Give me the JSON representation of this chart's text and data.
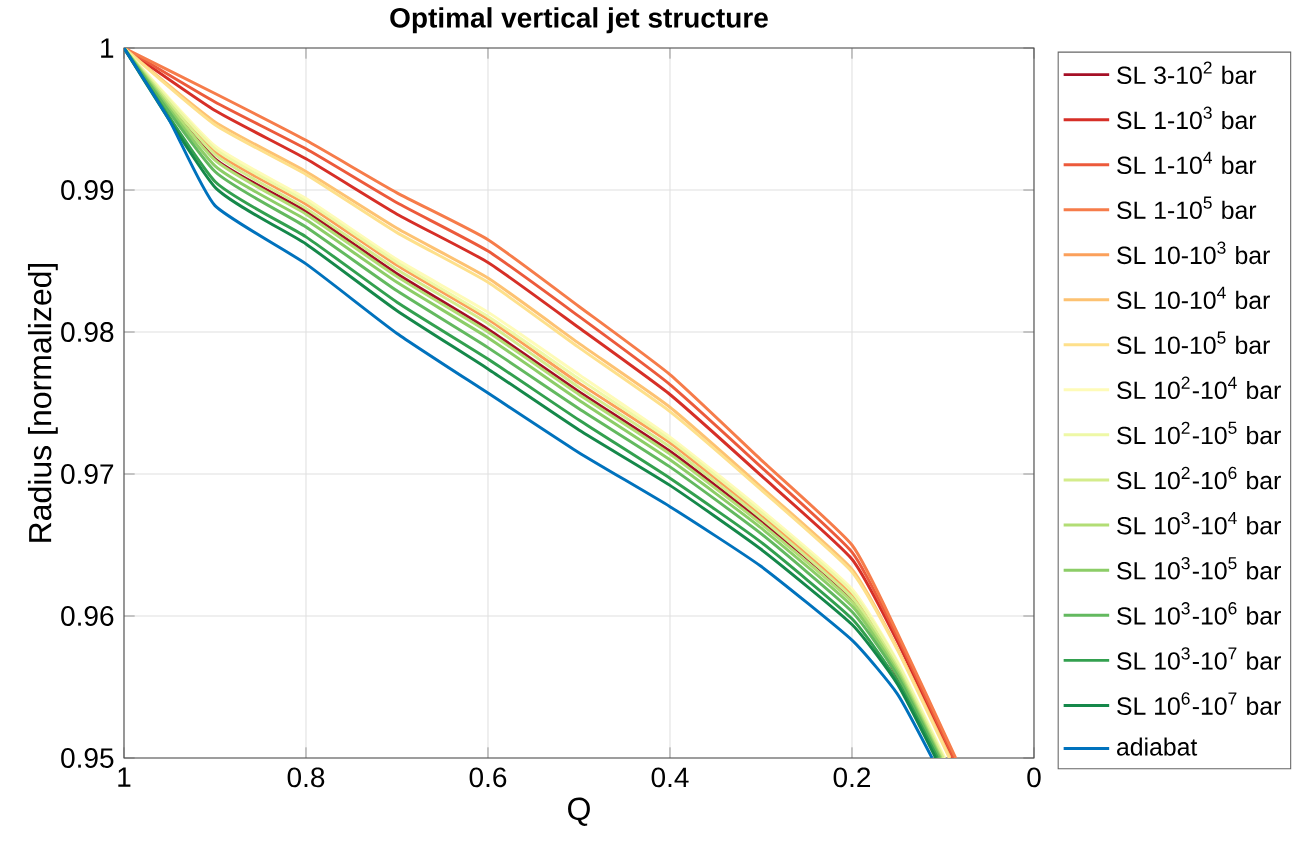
{
  "chart_data": {
    "type": "line",
    "title": "**Optimal vertical jet structure**",
    "xlabel": "Q",
    "ylabel": "Radius [normalized]",
    "xlim": [
      1,
      0
    ],
    "ylim": [
      0.95,
      1
    ],
    "xticks": [
      1,
      0.8,
      0.6,
      0.4,
      0.2,
      0
    ],
    "yticks": [
      0.95,
      0.96,
      0.97,
      0.98,
      0.99,
      1
    ],
    "grid": true,
    "legend": "right",
    "marker": "none",
    "line_style": "solid",
    "series": [
      {
        "name": "SL 3-10$^{2}$ bar",
        "color": "#a50f26",
        "x": [
          1,
          0.9,
          0.8,
          0.7,
          0.6,
          0.5,
          0.4,
          0.3,
          0.2,
          0.15,
          0.101
        ],
        "values": [
          1,
          0.9922,
          0.9885,
          0.9841,
          0.9802,
          0.9758,
          0.9716,
          0.9667,
          0.9611,
          null,
          0.95
        ]
      },
      {
        "name": "SL 1-10$^{3}$ bar",
        "color": "#d62f27",
        "x": [
          1,
          0.9,
          0.8,
          0.7,
          0.6,
          0.5,
          0.4,
          0.3,
          0.2,
          0.15,
          0.09
        ],
        "values": [
          1,
          0.9956,
          0.9922,
          0.9883,
          0.9849,
          0.9803,
          0.9756,
          0.9699,
          0.964,
          0.9582,
          0.95
        ]
      },
      {
        "name": "SL 1-10$^{4}$ bar",
        "color": "#ec5a3b",
        "x": [
          1,
          0.9,
          0.8,
          0.7,
          0.6,
          0.5,
          0.4,
          0.3,
          0.2,
          0.15,
          0.088
        ],
        "values": [
          1,
          0.9962,
          0.9929,
          0.9891,
          0.9857,
          0.9811,
          0.9763,
          0.9705,
          0.9645,
          0.9585,
          0.95
        ]
      },
      {
        "name": "SL 1-10$^{5}$ bar",
        "color": "#f67c4a",
        "x": [
          1,
          0.9,
          0.8,
          0.7,
          0.6,
          0.5,
          0.4,
          0.3,
          0.2,
          0.15,
          0.086
        ],
        "values": [
          1,
          0.9968,
          0.9935,
          0.9898,
          0.9865,
          0.9818,
          0.977,
          0.971,
          0.965,
          0.9588,
          0.95
        ]
      },
      {
        "name": "SL 10-10$^{3}$ bar",
        "color": "#fba05b",
        "x": [
          1,
          0.9,
          0.8,
          0.7,
          0.6,
          0.5,
          0.4,
          0.3,
          0.2,
          0.15,
          0.0995
        ],
        "values": [
          1,
          0.9927,
          0.989,
          0.9847,
          0.9809,
          0.9764,
          0.9722,
          0.9671,
          0.9615,
          0.9566,
          0.95
        ]
      },
      {
        "name": "SL 10-10$^{4}$ bar",
        "color": "#fdc272",
        "x": [
          1,
          0.9,
          0.8,
          0.7,
          0.6,
          0.5,
          0.4,
          0.3,
          0.2,
          0.15,
          0.092
        ],
        "values": [
          1,
          0.9948,
          0.9913,
          0.9873,
          0.9838,
          0.9792,
          0.9747,
          0.9691,
          0.9633,
          0.9577,
          0.95
        ]
      },
      {
        "name": "SL 10-10$^{5}$ bar",
        "color": "#fee08b",
        "x": [
          1,
          0.9,
          0.8,
          0.7,
          0.6,
          0.5,
          0.4,
          0.3,
          0.2,
          0.15,
          0.093
        ],
        "values": [
          1,
          0.9946,
          0.9911,
          0.987,
          0.9835,
          0.9789,
          0.9744,
          0.9689,
          0.9631,
          0.9576,
          0.95
        ]
      },
      {
        "name": "SL 10$^{2}$-10$^{4}$ bar",
        "color": "#fefbb8",
        "x": [
          1,
          0.9,
          0.8,
          0.7,
          0.6,
          0.5,
          0.4,
          0.3,
          0.2,
          0.15,
          0.098
        ],
        "values": [
          1,
          0.9931,
          0.9894,
          0.9851,
          0.9814,
          0.977,
          0.9726,
          0.9675,
          0.9619,
          0.9568,
          0.95
        ]
      },
      {
        "name": "SL 10$^{2}$-10$^{5}$ bar",
        "color": "#eef8a6",
        "x": [
          1,
          0.9,
          0.8,
          0.7,
          0.6,
          0.5,
          0.4,
          0.3,
          0.2,
          0.15,
          0.099
        ],
        "values": [
          1,
          0.9929,
          0.9892,
          0.9849,
          0.9811,
          0.9767,
          0.9724,
          0.9673,
          0.9617,
          0.9567,
          0.95
        ]
      },
      {
        "name": "SL 10$^{2}$-10$^{6}$ bar",
        "color": "#d4ec8b",
        "x": [
          1,
          0.9,
          0.8,
          0.7,
          0.6,
          0.5,
          0.4,
          0.3,
          0.2,
          0.15,
          0.1
        ],
        "values": [
          1,
          0.9925,
          0.9887,
          0.9844,
          0.9806,
          0.9761,
          0.9719,
          0.9669,
          0.9613,
          0.9564,
          0.95
        ]
      },
      {
        "name": "SL 10$^{3}$-10$^{4}$ bar",
        "color": "#b2dd75",
        "x": [
          1,
          0.9,
          0.8,
          0.7,
          0.6,
          0.5,
          0.4,
          0.3,
          0.2,
          0.15,
          0.102
        ],
        "values": [
          1,
          0.9921,
          0.9883,
          0.9839,
          0.98,
          0.9756,
          0.9714,
          0.9665,
          0.961,
          0.9562,
          0.95
        ]
      },
      {
        "name": "SL 10$^{3}$-10$^{5}$ bar",
        "color": "#8ccd67",
        "x": [
          1,
          0.9,
          0.8,
          0.7,
          0.6,
          0.5,
          0.4,
          0.3,
          0.2,
          0.15,
          0.103
        ],
        "values": [
          1,
          0.9917,
          0.9879,
          0.9835,
          0.9796,
          0.9752,
          0.971,
          0.9662,
          0.9607,
          0.956,
          0.95
        ]
      },
      {
        "name": "SL 10$^{3}$-10$^{6}$ bar",
        "color": "#63b95f",
        "x": [
          1,
          0.9,
          0.8,
          0.7,
          0.6,
          0.5,
          0.4,
          0.3,
          0.2,
          0.15,
          0.104
        ],
        "values": [
          1,
          0.9913,
          0.9874,
          0.9829,
          0.9789,
          0.9746,
          0.9705,
          0.9658,
          0.9603,
          0.9558,
          0.95
        ]
      },
      {
        "name": "SL 10$^{3}$-10$^{7}$ bar",
        "color": "#33a04f",
        "x": [
          1,
          0.9,
          0.8,
          0.7,
          0.6,
          0.5,
          0.4,
          0.3,
          0.2,
          0.15,
          0.106
        ],
        "values": [
          1,
          0.9906,
          0.9867,
          0.9821,
          0.9781,
          0.9738,
          0.9697,
          0.9652,
          0.9598,
          0.9554,
          0.95
        ]
      },
      {
        "name": "SL 10$^{6}$-10$^{7}$ bar",
        "color": "#15884a",
        "x": [
          1,
          0.9,
          0.8,
          0.7,
          0.6,
          0.5,
          0.4,
          0.3,
          0.2,
          0.15,
          0.108
        ],
        "values": [
          1,
          0.9902,
          0.9862,
          0.9815,
          0.9774,
          0.9731,
          0.9692,
          0.9647,
          0.9594,
          0.9552,
          0.95
        ]
      },
      {
        "name": "adiabat",
        "color": "#0072bd",
        "x": [
          1,
          0.95,
          0.9,
          0.8,
          0.7,
          0.6,
          0.5,
          0.4,
          0.3,
          0.2,
          0.15,
          0.112
        ],
        "values": [
          1,
          0.9949,
          0.9889,
          0.9848,
          0.9799,
          0.9757,
          0.9715,
          0.9677,
          0.9635,
          0.9583,
          0.9545,
          0.95
        ]
      }
    ]
  }
}
